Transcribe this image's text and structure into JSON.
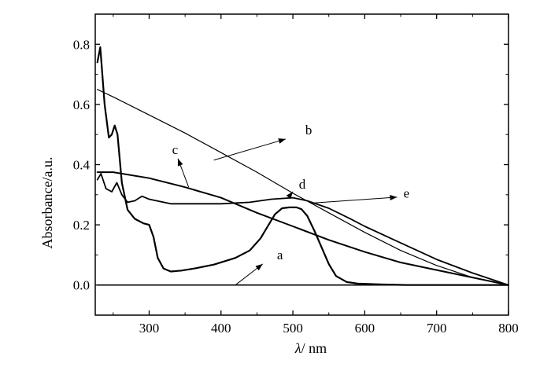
{
  "chart_data": {
    "type": "line",
    "xlabel_symbol": "λ",
    "xlabel_unit": "/ nm",
    "ylabel": "Absorbance/a.u.",
    "xlim": [
      225,
      800
    ],
    "ylim": [
      -0.1,
      0.9
    ],
    "xticks": [
      300,
      400,
      500,
      600,
      700,
      800
    ],
    "yticks": [
      0.0,
      0.2,
      0.4,
      0.6,
      0.8
    ],
    "xtick_labels": [
      "300",
      "400",
      "500",
      "600",
      "700",
      "800"
    ],
    "ytick_labels": [
      "0.0",
      "0.2",
      "0.4",
      "0.6",
      "0.8"
    ],
    "grid": false,
    "series": [
      {
        "name": "a",
        "x": [
          228,
          300,
          400,
          500,
          600,
          700,
          800
        ],
        "y": [
          0.0,
          0.0,
          0.0,
          0.0,
          0.0,
          0.0,
          0.0
        ]
      },
      {
        "name": "b",
        "x": [
          228,
          250,
          300,
          350,
          400,
          450,
          500,
          550,
          600,
          650,
          700,
          750,
          800
        ],
        "y": [
          0.65,
          0.625,
          0.565,
          0.505,
          0.44,
          0.375,
          0.305,
          0.24,
          0.175,
          0.115,
          0.065,
          0.025,
          0.0
        ]
      },
      {
        "name": "c",
        "x": [
          228,
          250,
          300,
          350,
          400,
          450,
          500,
          550,
          600,
          650,
          700,
          750,
          800
        ],
        "y": [
          0.375,
          0.375,
          0.355,
          0.325,
          0.29,
          0.24,
          0.195,
          0.15,
          0.11,
          0.075,
          0.05,
          0.025,
          0.0
        ]
      },
      {
        "name": "d",
        "x": [
          228,
          232,
          238,
          244,
          248,
          252,
          256,
          262,
          270,
          280,
          292,
          300,
          306,
          312,
          320,
          330,
          345,
          365,
          390,
          420,
          440,
          455,
          465,
          475,
          485,
          495,
          505,
          512,
          520,
          530,
          540,
          550,
          560,
          575,
          590,
          620,
          660,
          700,
          750,
          800
        ],
        "y": [
          0.74,
          0.79,
          0.6,
          0.49,
          0.5,
          0.53,
          0.5,
          0.34,
          0.25,
          0.22,
          0.205,
          0.2,
          0.16,
          0.09,
          0.055,
          0.045,
          0.048,
          0.056,
          0.068,
          0.09,
          0.115,
          0.155,
          0.195,
          0.235,
          0.255,
          0.258,
          0.258,
          0.252,
          0.23,
          0.18,
          0.125,
          0.07,
          0.03,
          0.01,
          0.005,
          0.002,
          0.0,
          0.0,
          0.0,
          0.0
        ]
      },
      {
        "name": "e",
        "x": [
          228,
          233,
          240,
          248,
          255,
          262,
          270,
          280,
          290,
          300,
          330,
          360,
          400,
          440,
          470,
          500,
          520,
          550,
          580,
          600,
          650,
          700,
          750,
          800
        ],
        "y": [
          0.35,
          0.37,
          0.32,
          0.31,
          0.34,
          0.3,
          0.275,
          0.28,
          0.295,
          0.285,
          0.27,
          0.27,
          0.27,
          0.275,
          0.285,
          0.29,
          0.28,
          0.255,
          0.22,
          0.195,
          0.14,
          0.085,
          0.04,
          0.0
        ]
      }
    ],
    "annotations": [
      {
        "label": "a",
        "arrow_tail": [
          420,
          0.0
        ],
        "arrow_head": [
          458,
          0.07
        ],
        "text_at": [
          482,
          0.085
        ]
      },
      {
        "label": "b",
        "arrow_tail": [
          390,
          0.415
        ],
        "arrow_head": [
          490,
          0.485
        ],
        "text_at": [
          522,
          0.5
        ]
      },
      {
        "label": "c",
        "arrow_tail": [
          355,
          0.325
        ],
        "arrow_head": [
          340,
          0.42
        ],
        "text_at": [
          336,
          0.435
        ]
      },
      {
        "label": "d",
        "arrow_tail": [
          494,
          0.292
        ],
        "arrow_head": [
          500,
          0.31
        ],
        "text_at": [
          513,
          0.32
        ]
      },
      {
        "label": "e",
        "arrow_tail": [
          525,
          0.272
        ],
        "arrow_head": [
          645,
          0.292
        ],
        "text_at": [
          658,
          0.29
        ]
      }
    ]
  }
}
